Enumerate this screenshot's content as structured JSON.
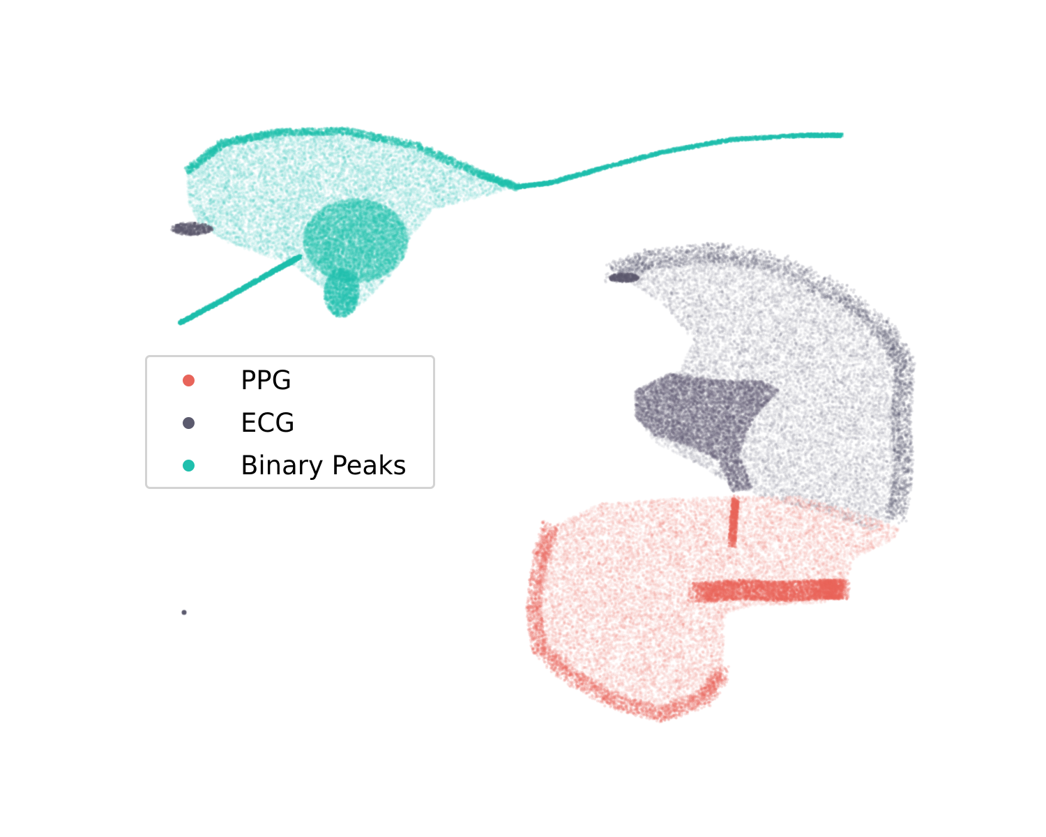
{
  "chart_data": {
    "type": "scatter",
    "title": "",
    "xlabel": "",
    "ylabel": "",
    "axes_visible": false,
    "grid": false,
    "legend_placement": "center-left",
    "series": [
      {
        "name": "PPG",
        "color": "#e8645a",
        "clusters": [
          {
            "shape": "lower-right heart-shaped blob",
            "density": "diffuse",
            "marker_alpha": "low"
          },
          {
            "shape": "dense horizontal band along the blob's upper lobe",
            "density": "dense"
          }
        ]
      },
      {
        "name": "ECG",
        "color": "#5b5a6e",
        "clusters": [
          {
            "shape": "large right cluster above the PPG blob",
            "density": "diffuse"
          },
          {
            "shape": "dense inner core within the right cluster",
            "density": "dense"
          },
          {
            "shape": "small wedge at left tip of the upper-left cluster",
            "density": "dense"
          },
          {
            "shape": "single isolated point at lower left",
            "density": "single"
          }
        ]
      },
      {
        "name": "Binary Peaks",
        "color": "#1fbfad",
        "clusters": [
          {
            "shape": "upper-left diffuse cloud with dense core",
            "density": "diffuse"
          },
          {
            "shape": "thin tail curving toward upper right",
            "density": "line"
          },
          {
            "shape": "straight thin tail toward lower left",
            "density": "line"
          }
        ]
      }
    ]
  },
  "legend": {
    "items": [
      {
        "label": "PPG",
        "color": "#e8645a"
      },
      {
        "label": "ECG",
        "color": "#5b5a6e"
      },
      {
        "label": "Binary Peaks",
        "color": "#1fbfad"
      }
    ]
  }
}
